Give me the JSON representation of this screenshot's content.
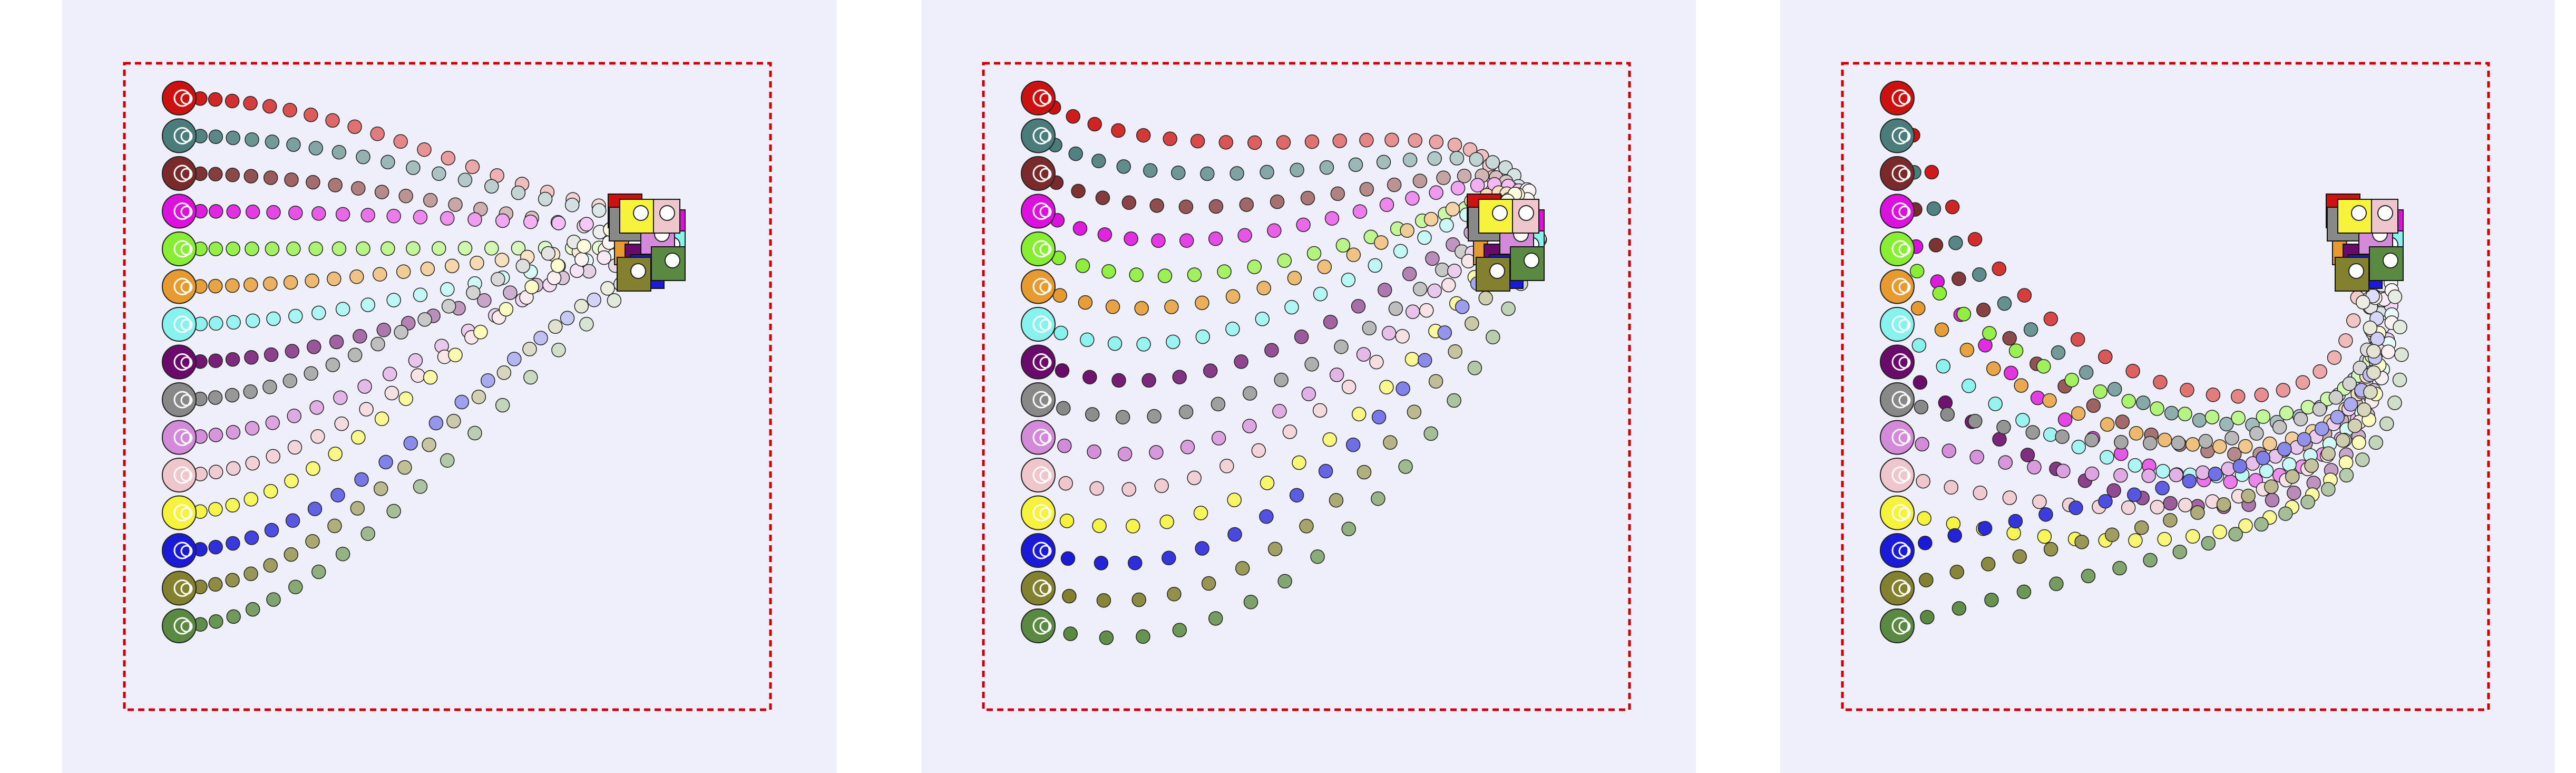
{
  "colors": {
    "background": "#efeffb",
    "boundary": "#cc0000",
    "robot_fill": "#ffffff",
    "agents": [
      {
        "id": "red",
        "color": "#cc1111"
      },
      {
        "id": "teal",
        "color": "#4a7c7c"
      },
      {
        "id": "maroon",
        "color": "#7a2a2a"
      },
      {
        "id": "magenta",
        "color": "#dd11dd"
      },
      {
        "id": "lime",
        "color": "#88ee33"
      },
      {
        "id": "orange",
        "color": "#e69a30"
      },
      {
        "id": "cyan",
        "color": "#88f2ee"
      },
      {
        "id": "purple",
        "color": "#6a0a6a"
      },
      {
        "id": "gray",
        "color": "#888888"
      },
      {
        "id": "orchid",
        "color": "#d38ad8"
      },
      {
        "id": "pink",
        "color": "#efc6cc"
      },
      {
        "id": "yellow",
        "color": "#f7f33c"
      },
      {
        "id": "blue",
        "color": "#1a1ad8"
      },
      {
        "id": "olive",
        "color": "#838030"
      },
      {
        "id": "green",
        "color": "#5a8a42"
      }
    ]
  },
  "panels": [
    {
      "id": "panel-1",
      "pattern": "converge"
    },
    {
      "id": "panel-2",
      "pattern": "sweep-right"
    },
    {
      "id": "panel-3",
      "pattern": "loop-around"
    }
  ]
}
